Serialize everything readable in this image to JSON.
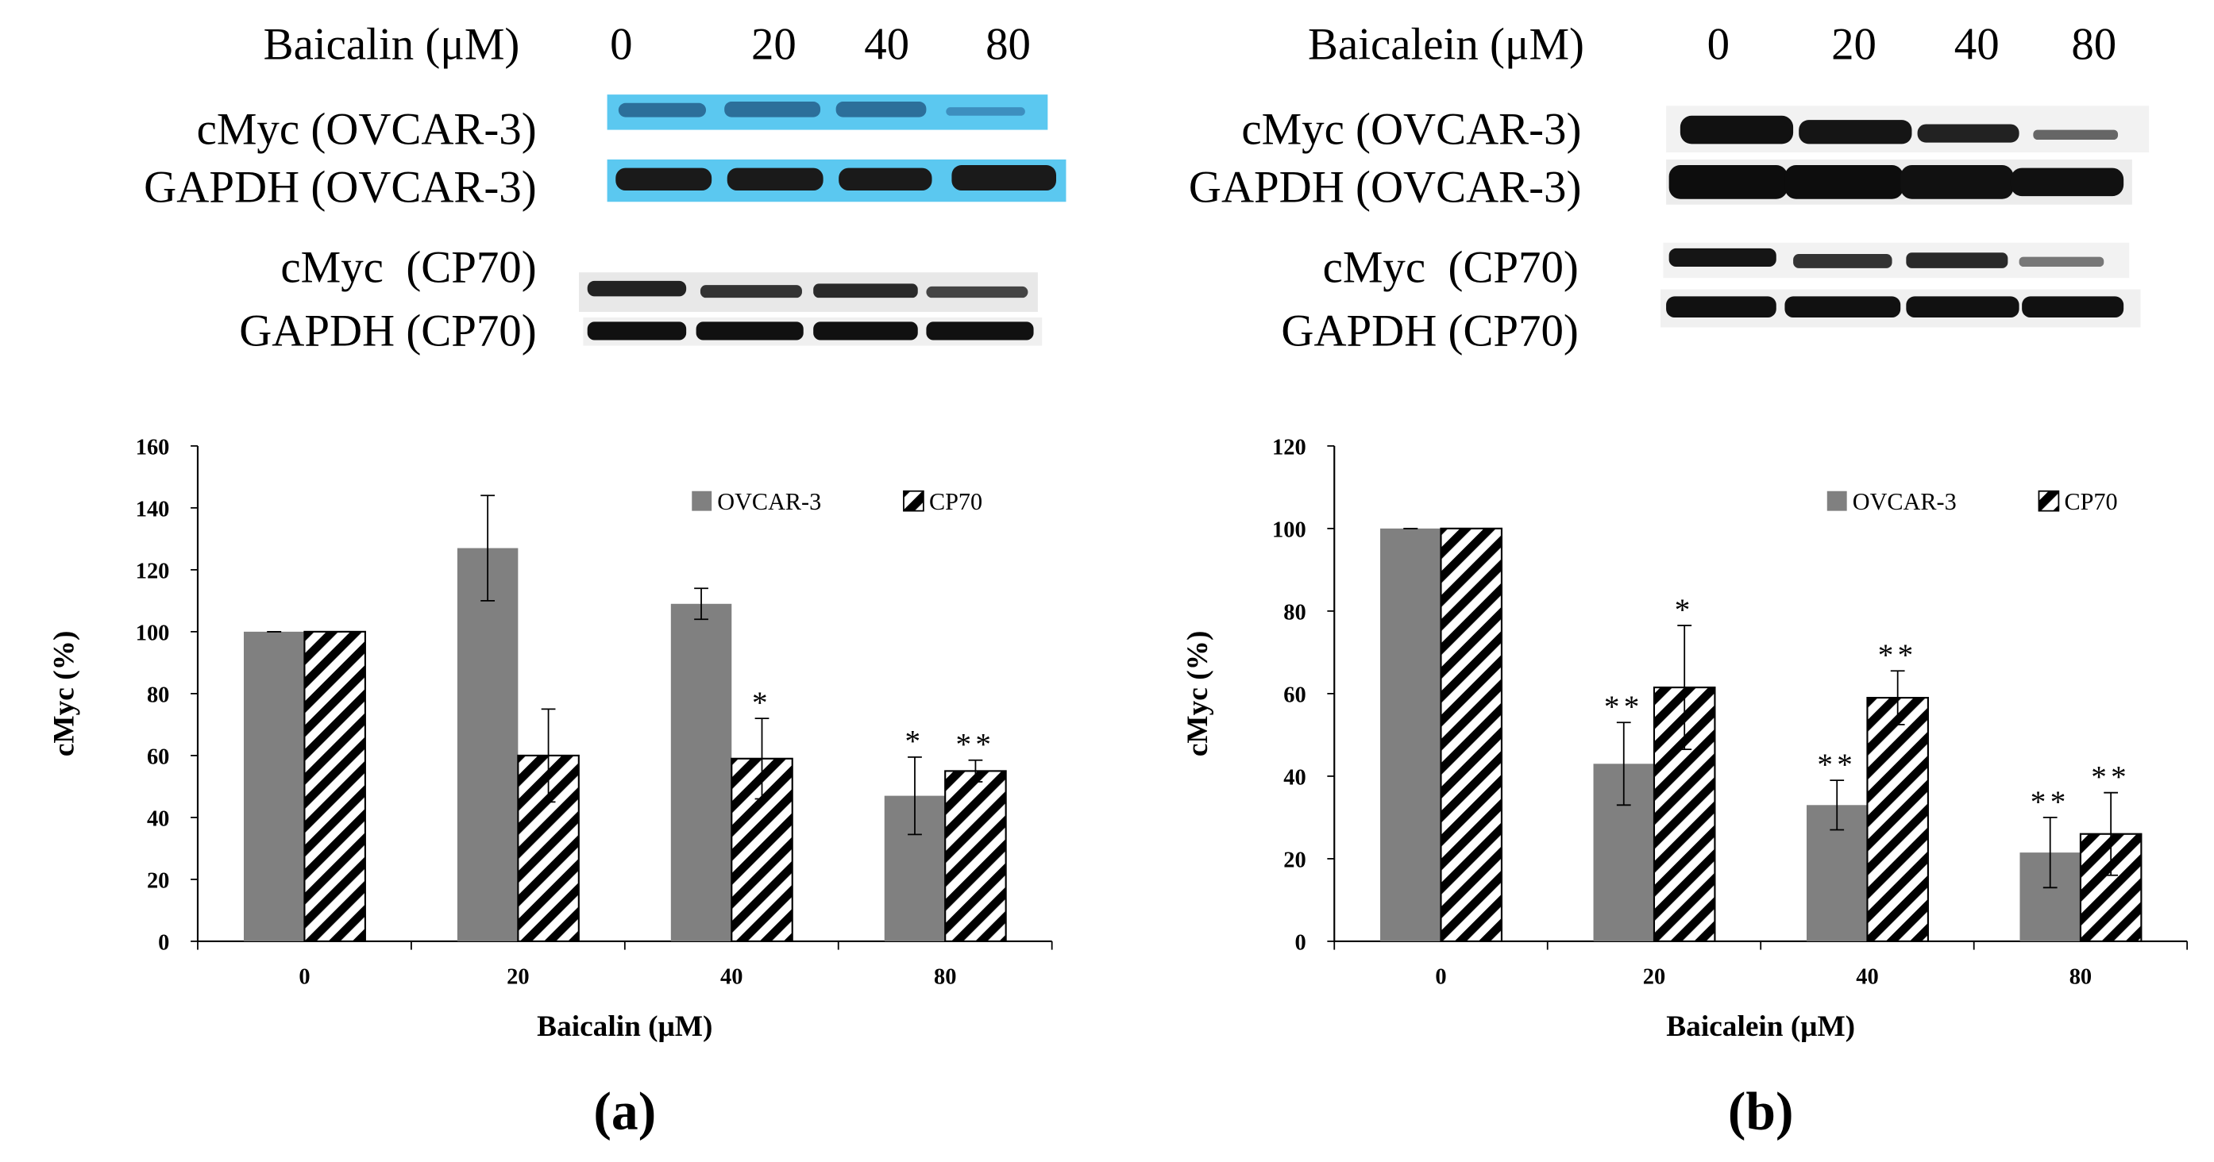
{
  "blots": [
    {
      "treatment": "Baicalin (μM)",
      "doses": [
        "0",
        "20",
        "40",
        "80"
      ],
      "rows": [
        "cMyc (OVCAR-3)",
        "GAPDH (OVCAR-3)",
        "cMyc  (CP70)",
        "GAPDH (CP70)"
      ]
    },
    {
      "treatment": "Baicalein (μM)",
      "doses": [
        "0",
        "20",
        "40",
        "80"
      ],
      "rows": [
        "cMyc (OVCAR-3)",
        "GAPDH (OVCAR-3)",
        "cMyc  (CP70)",
        "GAPDH (CP70)"
      ]
    }
  ],
  "chart_data": [
    {
      "type": "bar",
      "panel_label": "(a)",
      "x_label": "Baicalin (μM)",
      "y_label": "cMyc (%)",
      "categories": [
        "0",
        "20",
        "40",
        "80"
      ],
      "series": [
        {
          "name": "OVCAR-3",
          "color": "#808080",
          "values": [
            100,
            127,
            109,
            47
          ],
          "errors": [
            0,
            17,
            5,
            12.5
          ],
          "significance": [
            null,
            null,
            null,
            "*"
          ]
        },
        {
          "name": "CP70",
          "color": "#000000",
          "pattern": "diagonal-hatch",
          "values": [
            100,
            60,
            59,
            55
          ],
          "errors": [
            0,
            15,
            13,
            3.5
          ],
          "significance": [
            null,
            null,
            "*",
            "**"
          ]
        }
      ],
      "ylim": [
        0,
        160
      ],
      "yticks": [
        0,
        20,
        40,
        60,
        80,
        100,
        120,
        140,
        160
      ],
      "legend": "top-right",
      "grid": false
    },
    {
      "type": "bar",
      "panel_label": "(b)",
      "x_label": "Baicalein (μM)",
      "y_label": "cMyc (%)",
      "categories": [
        "0",
        "20",
        "40",
        "80"
      ],
      "series": [
        {
          "name": "OVCAR-3",
          "color": "#808080",
          "values": [
            100,
            43,
            33,
            21.5
          ],
          "errors": [
            0,
            10,
            6,
            8.5
          ],
          "significance": [
            null,
            "**",
            "**",
            "**"
          ]
        },
        {
          "name": "CP70",
          "color": "#000000",
          "pattern": "diagonal-hatch",
          "values": [
            100,
            61.5,
            59,
            26
          ],
          "errors": [
            0,
            15,
            6.5,
            10
          ],
          "significance": [
            null,
            "*",
            "**",
            "**"
          ]
        }
      ],
      "ylim": [
        0,
        120
      ],
      "yticks": [
        0,
        20,
        40,
        60,
        80,
        100,
        120
      ],
      "legend": "top-right",
      "grid": false
    }
  ]
}
